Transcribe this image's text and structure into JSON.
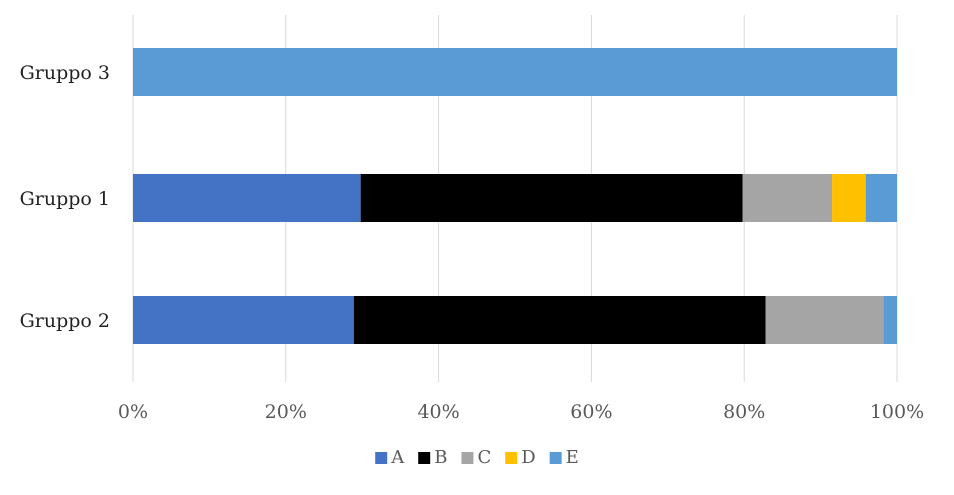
{
  "chart_data": {
    "type": "bar",
    "orientation": "horizontal",
    "stacked": "percent",
    "categories": [
      "Gruppo 3",
      "Gruppo 1",
      "Gruppo 2"
    ],
    "series": [
      {
        "name": "A",
        "color": "#4472C4",
        "values": [
          0,
          29.8,
          28.9
        ]
      },
      {
        "name": "B",
        "color": "#000000",
        "values": [
          0,
          50.0,
          53.9
        ]
      },
      {
        "name": "C",
        "color": "#A5A5A5",
        "values": [
          0,
          11.7,
          15.4
        ]
      },
      {
        "name": "D",
        "color": "#FFC000",
        "values": [
          0,
          4.4,
          0
        ]
      },
      {
        "name": "E",
        "color": "#5B9BD5",
        "values": [
          100,
          4.1,
          1.8
        ]
      }
    ],
    "xlim": [
      0,
      100
    ],
    "x_ticks": [
      "0%",
      "20%",
      "40%",
      "60%",
      "80%",
      "100%"
    ],
    "grid": true,
    "legend_position": "bottom"
  }
}
